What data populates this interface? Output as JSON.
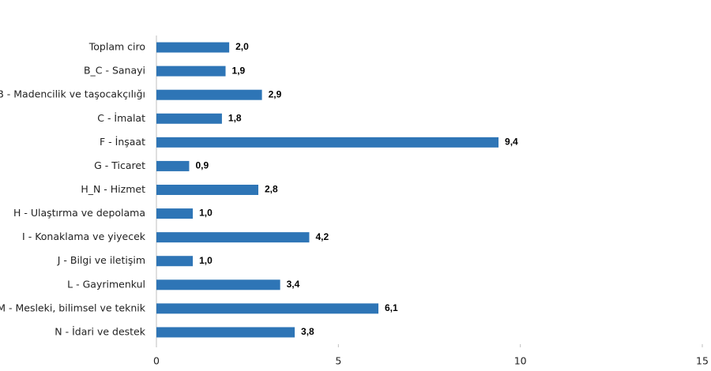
{
  "chart_data": {
    "type": "bar",
    "orientation": "horizontal",
    "categories": [
      "Toplam ciro",
      "B_C - Sanayi",
      "B - Madencilik ve taşocakçılığı",
      "C - İmalat",
      "F - İnşaat",
      "G - Ticaret",
      "H_N - Hizmet",
      "H - Ulaştırma ve depolama",
      "I - Konaklama ve yiyecek",
      "J - Bilgi ve iletişim",
      "L - Gayrimenkul",
      "M - Mesleki, bilimsel ve teknik",
      "N - İdari ve destek"
    ],
    "values": [
      2.0,
      1.9,
      2.9,
      1.8,
      9.4,
      0.9,
      2.8,
      1.0,
      4.2,
      1.0,
      3.4,
      6.1,
      3.8
    ],
    "value_labels": [
      "2,0",
      "1,9",
      "2,9",
      "1,8",
      "9,4",
      "0,9",
      "2,8",
      "1,0",
      "4,2",
      "1,0",
      "3,4",
      "6,1",
      "3,8"
    ],
    "color": "#2e75b6",
    "xlim": [
      0,
      15
    ],
    "xticks": [
      0,
      5,
      10,
      15
    ],
    "grid": false
  }
}
